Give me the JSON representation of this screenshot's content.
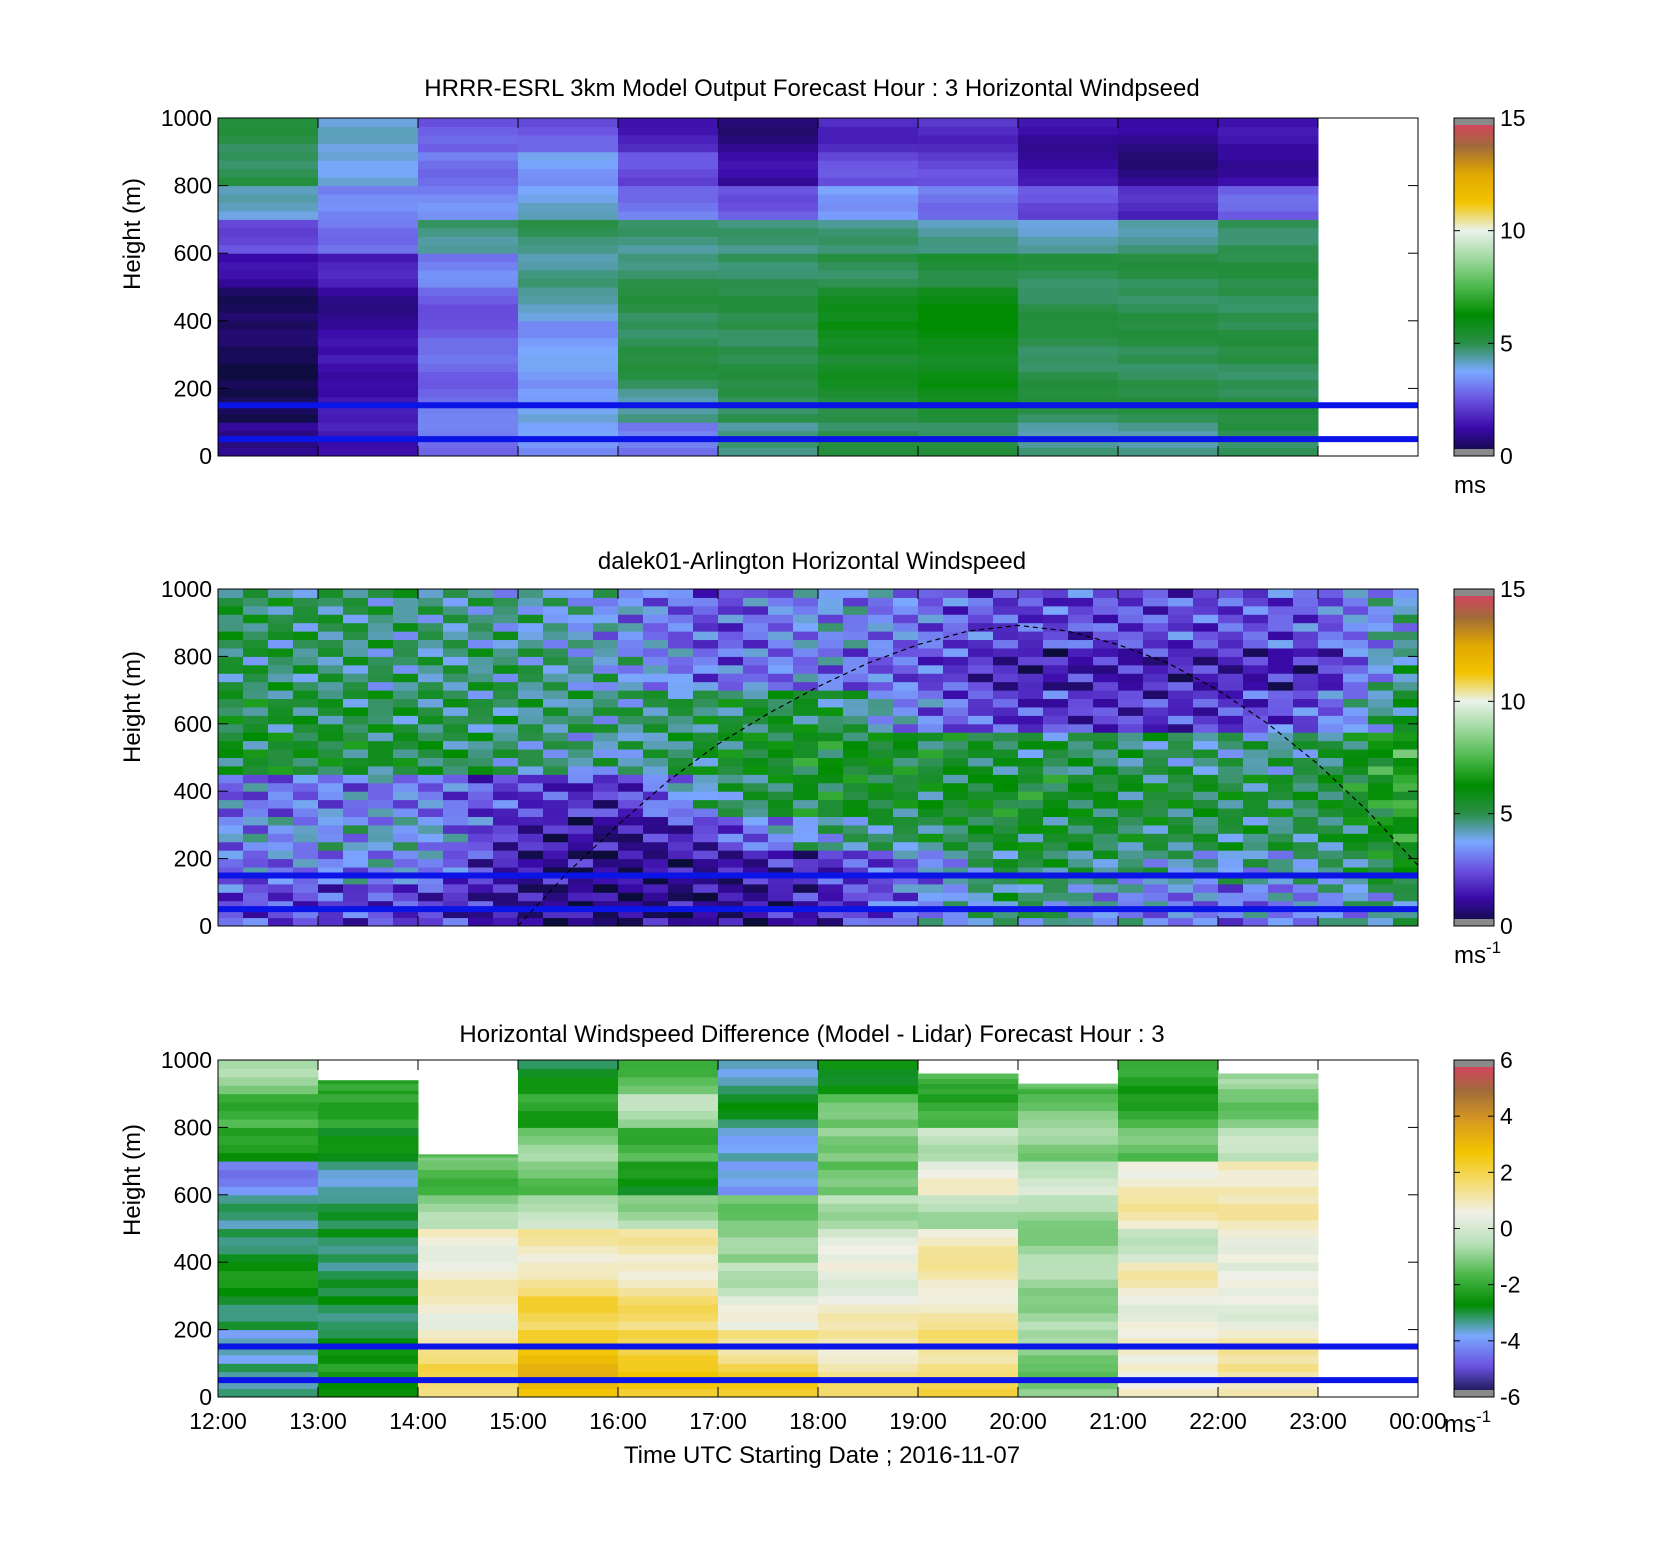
{
  "figure": {
    "xlabel": "Time UTC  Starting Date ; 2016-11-07",
    "x_tick_labels": [
      "12:00",
      "13:00",
      "14:00",
      "15:00",
      "16:00",
      "17:00",
      "18:00",
      "19:00",
      "20:00",
      "21:00",
      "22:00",
      "23:00",
      "00:00"
    ]
  },
  "colors": {
    "overlay_line": "#0a14e6",
    "speed_colormap": [
      "#0c0c3a",
      "#3a0aa8",
      "#6a52e0",
      "#7aa8ff",
      "#2a8f48",
      "#008c00",
      "#4cb84c",
      "#9ed89e",
      "#eaf2ea",
      "#f2c400",
      "#e0a800",
      "#a06a3a",
      "#e23a6a"
    ],
    "diff_colormap": [
      "#0c0c3a",
      "#6a52e0",
      "#7aa8ff",
      "#008c00",
      "#4cb84c",
      "#b8e0b8",
      "#f0f0e8",
      "#f5dc70",
      "#f2c400",
      "#d89a20",
      "#a06a3a",
      "#e23a6a"
    ]
  },
  "chart_data": [
    {
      "type": "heatmap",
      "title": "HRRR-ESRL 3km Model Output   Forecast Hour : 3 Horizontal Windpseed",
      "ylabel": "Height (m)",
      "ylim": [
        0,
        1000
      ],
      "y_ticks": [
        "0",
        "200",
        "400",
        "600",
        "800",
        "1000"
      ],
      "x_range_hours_utc": [
        12,
        24
      ],
      "colorbar": {
        "range": [
          0,
          15
        ],
        "ticks": [
          "0",
          "5",
          "10",
          "15"
        ],
        "unit": "ms",
        "unit_sup": ""
      },
      "overlay_lines_m": [
        150,
        50
      ],
      "columns_start_hour": 12,
      "rows_bottom_m": [
        0,
        100,
        200,
        300,
        400,
        500,
        600,
        700,
        800,
        900
      ],
      "values": [
        [
          1.0,
          1.5,
          3.0,
          3.5,
          3.0,
          4.5,
          5.0,
          5.0,
          4.5,
          4.5,
          5.0
        ],
        [
          0.2,
          1.4,
          3.0,
          3.8,
          4.5,
          5.0,
          5.2,
          5.5,
          5.0,
          5.0,
          5.0
        ],
        [
          0.3,
          1.4,
          2.8,
          3.6,
          5.0,
          5.0,
          5.5,
          5.8,
          5.0,
          5.0,
          5.0
        ],
        [
          0.4,
          1.2,
          2.7,
          3.5,
          5.0,
          5.0,
          5.8,
          6.0,
          5.0,
          5.0,
          5.0
        ],
        [
          0.5,
          1.0,
          2.6,
          4.2,
          5.0,
          5.0,
          5.6,
          6.0,
          5.0,
          5.0,
          5.0
        ],
        [
          1.2,
          1.6,
          3.2,
          4.5,
          4.8,
          4.9,
          5.0,
          5.2,
          5.0,
          5.0,
          5.0
        ],
        [
          2.4,
          3.0,
          4.6,
          4.8,
          4.6,
          4.6,
          4.6,
          4.4,
          4.2,
          4.5,
          4.9
        ],
        [
          4.1,
          3.2,
          3.3,
          4.0,
          3.0,
          2.6,
          3.6,
          3.0,
          2.4,
          1.8,
          2.7
        ],
        [
          5.0,
          4.0,
          3.0,
          3.6,
          2.4,
          1.2,
          2.4,
          2.3,
          1.3,
          0.8,
          1.2
        ],
        [
          5.0,
          4.0,
          2.6,
          2.6,
          1.6,
          0.8,
          1.8,
          1.9,
          1.2,
          1.0,
          1.3
        ]
      ],
      "missing_value_note": "gray cells where data unavailable"
    },
    {
      "type": "heatmap",
      "title": "dalek01-Arlington  Horizontal Windspeed",
      "ylabel": "Height (m)",
      "ylim": [
        0,
        1000
      ],
      "y_ticks": [
        "0",
        "200",
        "400",
        "600",
        "800",
        "1000"
      ],
      "x_range_hours_utc": [
        12,
        24
      ],
      "colorbar": {
        "range": [
          0,
          15
        ],
        "ticks": [
          "0",
          "5",
          "10",
          "15"
        ],
        "unit": "ms",
        "unit_sup": "-1"
      },
      "overlay_lines_m": [
        150,
        50
      ],
      "band_hours": [
        12,
        14,
        15,
        16,
        17,
        18,
        19,
        20,
        21,
        22,
        23,
        23.9
      ],
      "band_bottom_m": [
        0,
        120,
        220,
        320,
        450,
        560,
        680,
        820,
        1000
      ],
      "band_values": [
        [
          2.4,
          2.2,
          1.1,
          0.8,
          0.9,
          1.6,
          3.2,
          5.0,
          3.5,
          3.0,
          3.5,
          4.6
        ],
        [
          2.8,
          3.6,
          1.2,
          0.9,
          1.2,
          1.8,
          3.0,
          5.4,
          4.5,
          4.0,
          4.3,
          6.0
        ],
        [
          3.4,
          4.0,
          1.6,
          1.0,
          2.2,
          4.2,
          5.0,
          5.6,
          5.2,
          5.0,
          4.8,
          6.5
        ],
        [
          2.9,
          3.2,
          2.1,
          1.8,
          4.6,
          5.8,
          5.5,
          5.8,
          5.5,
          5.3,
          5.2,
          6.8
        ],
        [
          5.6,
          5.4,
          4.6,
          4.2,
          5.5,
          6.0,
          5.6,
          5.2,
          5.0,
          4.5,
          4.8,
          6.9
        ],
        [
          5.4,
          5.0,
          4.8,
          4.6,
          5.2,
          5.4,
          3.2,
          2.0,
          2.0,
          2.0,
          2.6,
          5.4
        ],
        [
          5.0,
          4.6,
          4.8,
          4.0,
          2.8,
          3.2,
          2.6,
          1.4,
          1.6,
          1.6,
          1.5,
          4.8
        ],
        [
          5.2,
          4.6,
          4.4,
          3.6,
          2.4,
          3.6,
          3.0,
          2.2,
          2.4,
          2.4,
          2.6,
          4.2
        ]
      ],
      "dashed_curve": {
        "x_hours": [
          15.0,
          15.5,
          16.0,
          16.5,
          17.0,
          17.5,
          18.0,
          18.5,
          19.0,
          19.5,
          20.0,
          20.5,
          21.0,
          21.5,
          22.0,
          22.5,
          23.0,
          23.5,
          24.0
        ],
        "y_m": [
          0,
          160,
          300,
          430,
          540,
          630,
          710,
          780,
          835,
          875,
          892,
          875,
          835,
          780,
          700,
          600,
          480,
          340,
          180
        ]
      }
    },
    {
      "type": "heatmap",
      "title": "Horizontal Windspeed Difference (Model - Lidar) Forecast Hour : 3",
      "ylabel": "Height (m)",
      "ylim": [
        0,
        1000
      ],
      "y_ticks": [
        "0",
        "200",
        "400",
        "600",
        "800",
        "1000"
      ],
      "x_range_hours_utc": [
        12,
        24
      ],
      "colorbar": {
        "range": [
          -6,
          6
        ],
        "ticks": [
          "-6",
          "-4",
          "-2",
          "0",
          "2",
          "4",
          "6"
        ],
        "unit": "ms",
        "unit_sup": "-1"
      },
      "overlay_lines_m": [
        150,
        50
      ],
      "columns_start_hour": 12,
      "rows_bottom_m": [
        0,
        100,
        200,
        300,
        400,
        500,
        600,
        700,
        800,
        900
      ],
      "top_m_per_column": [
        1000,
        940,
        720,
        1000,
        1000,
        1000,
        1000,
        960,
        930,
        1000,
        960
      ],
      "values": [
        [
          -3.2,
          -2.4,
          1.8,
          3.0,
          2.4,
          2.2,
          1.4,
          1.8,
          -1.2,
          0.8,
          1.2
        ],
        [
          -3.8,
          -2.8,
          1.2,
          2.6,
          2.2,
          1.4,
          1.0,
          1.4,
          -1.0,
          0.6,
          1.0
        ],
        [
          -3.0,
          -3.0,
          0.6,
          2.0,
          1.6,
          0.4,
          0.8,
          1.0,
          -0.8,
          0.5,
          0.4
        ],
        [
          -2.6,
          -3.2,
          0.8,
          1.2,
          1.0,
          -0.4,
          0.4,
          1.0,
          -0.8,
          0.9,
          0.3
        ],
        [
          -3.0,
          -3.0,
          0.6,
          1.0,
          1.0,
          -1.0,
          0.2,
          1.0,
          -0.9,
          -0.2,
          0.6
        ],
        [
          -3.4,
          -3.2,
          -0.8,
          -0.4,
          -0.8,
          -1.2,
          -0.6,
          -0.6,
          -0.8,
          1.0,
          1.0
        ],
        [
          -4.2,
          -3.4,
          -1.6,
          -1.4,
          -2.6,
          -4.0,
          -1.4,
          0.6,
          -0.2,
          0.8,
          1.0
        ],
        [
          -2.4,
          -2.8,
          -1.4,
          -1.0,
          -1.8,
          -3.6,
          -1.0,
          -0.4,
          -1.0,
          -1.4,
          -0.4
        ],
        [
          -1.8,
          -2.0,
          -1.2,
          -2.2,
          -0.6,
          -3.0,
          -1.4,
          -2.0,
          -1.2,
          -2.0,
          -1.2
        ],
        [
          -0.9,
          -2.2,
          -1.0,
          -2.8,
          -1.6,
          -3.4,
          -2.6,
          -1.8,
          -1.6,
          -2.2,
          -1.0
        ]
      ]
    }
  ]
}
